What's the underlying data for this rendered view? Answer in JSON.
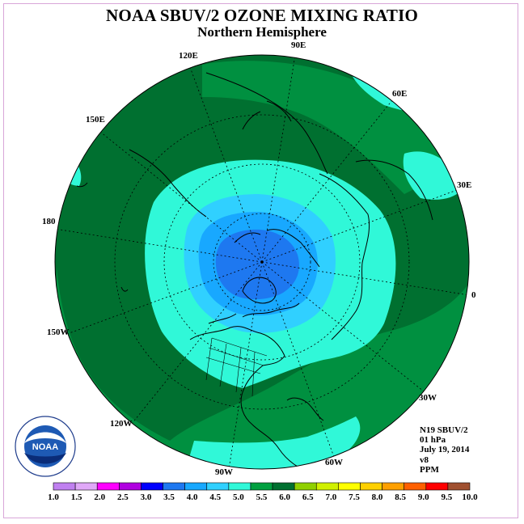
{
  "title": "NOAA SBUV/2 OZONE MIXING RATIO",
  "subtitle": "Northern Hemisphere",
  "longitude_labels": {
    "e90": "90E",
    "e60": "60E",
    "e30": "30E",
    "zero": "0",
    "w30": "30W",
    "w60": "60W",
    "w90": "90W",
    "w120": "120W",
    "w150": "150W",
    "d180": "180",
    "e150": "150E",
    "e120": "120E"
  },
  "info": {
    "instrument": "N19 SBUV/2",
    "level": "01 hPa",
    "date": "July 19, 2014",
    "version": "v8",
    "units": "PPM"
  },
  "colorbar": {
    "labels": [
      "1.0",
      "1.5",
      "2.0",
      "2.5",
      "3.0",
      "3.5",
      "4.0",
      "4.5",
      "5.0",
      "5.5",
      "6.0",
      "6.5",
      "7.0",
      "7.5",
      "8.0",
      "8.5",
      "9.0",
      "9.5",
      "10.0"
    ],
    "colors": [
      "#c080f0",
      "#e0a8f8",
      "#ff00ff",
      "#b000e0",
      "#0000ff",
      "#1e78f0",
      "#18a8ff",
      "#30d0ff",
      "#30f8d8",
      "#00a040",
      "#007030",
      "#90d000",
      "#d0f000",
      "#ffff00",
      "#ffd000",
      "#ffa000",
      "#ff6000",
      "#ff0000",
      "#a05030"
    ]
  },
  "map_colors": {
    "land_outline": "#000000",
    "band_5_5_6_0": "#007030",
    "band_4_5_5_0": "#30f8d8",
    "band_4_0_4_5": "#30d0ff",
    "band_3_5_4_0": "#18a8ff",
    "band_3_0_3_5": "#1e78f0"
  }
}
